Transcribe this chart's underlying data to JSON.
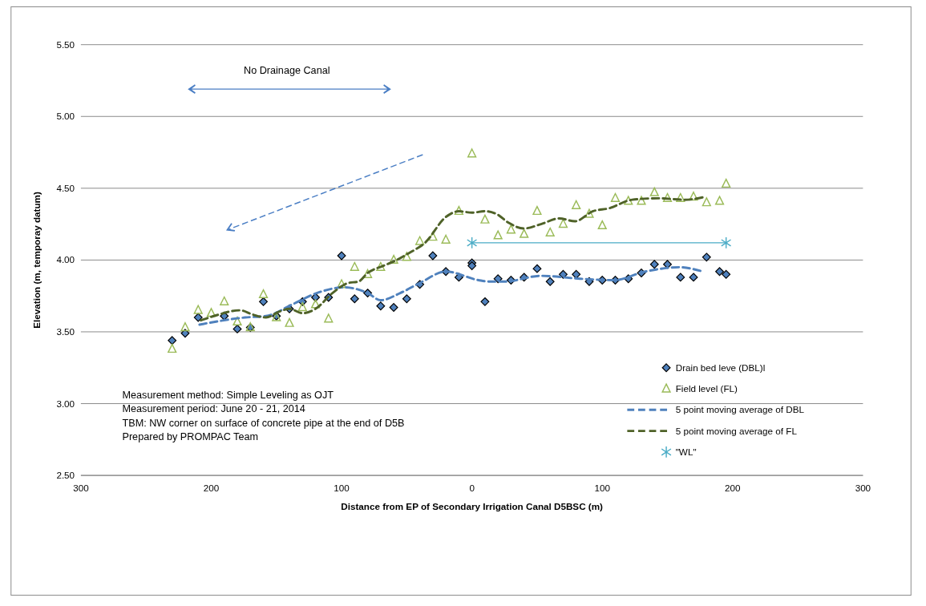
{
  "chart_data": {
    "type": "scatter",
    "xlabel": "Distance from EP of Secondary Irrigation Canal D5BSC (m)",
    "ylabel": "Elevation  (m, temporay datum)",
    "xlim": [
      -300,
      300
    ],
    "xticks": [
      {
        "value": -300,
        "label": "300"
      },
      {
        "value": -200,
        "label": "200"
      },
      {
        "value": -100,
        "label": "100"
      },
      0,
      100,
      200,
      300
    ],
    "ylim": [
      2.5,
      5.5
    ],
    "yticks": [
      {
        "value": 2.5,
        "label": "2.50"
      },
      {
        "value": 3,
        "label": "3.00"
      },
      {
        "value": 3.5,
        "label": "3.50"
      },
      {
        "value": 4,
        "label": "4.00"
      },
      {
        "value": 4.5,
        "label": "4.50"
      },
      {
        "value": 5,
        "label": "5.00"
      },
      {
        "value": 5.5,
        "label": "5.50"
      }
    ],
    "grid": "y",
    "legend": "right",
    "annotations": [
      "No Drainage Canal",
      "Measurement method: Simple Leveling as OJT",
      "Measurement period: June 20 -  21, 2014",
      "TBM: NW corner on surface of concrete pipe at the end of D5B",
      "Prepared by PROMPAC Team"
    ],
    "series": [
      {
        "name": "Drain bed leve (DBL)l",
        "type": "scatter",
        "marker": "diamond",
        "color": "#4f81bd",
        "x": [
          -230,
          -220,
          -210,
          -190,
          -180,
          -170,
          -160,
          -150,
          -140,
          -130,
          -120,
          -110,
          -100,
          -90,
          -80,
          -70,
          -60,
          -50,
          -40,
          -30,
          -20,
          -10,
          0,
          0,
          10,
          20,
          30,
          40,
          50,
          60,
          70,
          80,
          90,
          100,
          110,
          120,
          130,
          140,
          150,
          160,
          170,
          180,
          190,
          195
        ],
        "values": [
          3.44,
          3.49,
          3.6,
          3.61,
          3.52,
          3.53,
          3.71,
          3.61,
          3.66,
          3.71,
          3.74,
          3.74,
          4.03,
          3.73,
          3.77,
          3.68,
          3.67,
          3.73,
          3.83,
          4.03,
          3.92,
          3.88,
          3.98,
          3.96,
          3.71,
          3.87,
          3.86,
          3.88,
          3.94,
          3.85,
          3.9,
          3.9,
          3.85,
          3.86,
          3.86,
          3.87,
          3.91,
          3.97,
          3.97,
          3.88,
          3.88,
          4.02,
          3.92,
          3.9
        ]
      },
      {
        "name": "Field level (FL)",
        "type": "scatter",
        "marker": "triangle",
        "color": "#9bbb59",
        "x": [
          -230,
          -220,
          -210,
          -200,
          -190,
          -180,
          -170,
          -160,
          -150,
          -140,
          -130,
          -120,
          -110,
          -100,
          -90,
          -80,
          -70,
          -60,
          -50,
          -40,
          -30,
          -20,
          -10,
          0,
          10,
          20,
          30,
          40,
          50,
          60,
          70,
          80,
          90,
          100,
          110,
          120,
          130,
          140,
          150,
          160,
          170,
          180,
          190,
          195
        ],
        "values": [
          3.38,
          3.53,
          3.65,
          3.63,
          3.71,
          3.57,
          3.53,
          3.76,
          3.6,
          3.56,
          3.67,
          3.69,
          3.59,
          3.83,
          3.95,
          3.9,
          3.95,
          4.0,
          4.02,
          4.13,
          4.16,
          4.14,
          4.34,
          4.74,
          4.28,
          4.17,
          4.21,
          4.18,
          4.34,
          4.19,
          4.25,
          4.38,
          4.32,
          4.24,
          4.43,
          4.41,
          4.41,
          4.47,
          4.43,
          4.43,
          4.44,
          4.4,
          4.41,
          4.53
        ]
      },
      {
        "name": "5 point moving average of DBL",
        "type": "line",
        "line_style": "dashed",
        "marker": "none",
        "color": "#4f81bd",
        "x": [
          -209,
          -174,
          -158,
          -138,
          -119,
          -98,
          -80,
          -70,
          -55,
          -40,
          -20,
          5,
          13,
          25,
          53,
          83,
          109,
          133,
          159,
          177
        ],
        "values": [
          3.55,
          3.6,
          3.61,
          3.69,
          3.77,
          3.81,
          3.77,
          3.72,
          3.77,
          3.84,
          3.92,
          3.86,
          3.85,
          3.85,
          3.89,
          3.87,
          3.86,
          3.92,
          3.95,
          3.92
        ]
      },
      {
        "name": "5 point moving average of FL",
        "type": "line",
        "line_style": "dashed",
        "marker": "none",
        "color": "#4f6228",
        "x": [
          -208,
          -198,
          -178,
          -168,
          -158,
          -148,
          -140,
          -130,
          -120,
          -107,
          -95,
          -87,
          -80,
          -68,
          -60,
          -48,
          -36,
          -20,
          -10,
          0,
          10,
          19,
          28,
          40,
          53,
          67,
          79,
          93,
          105,
          123,
          143,
          163,
          179
        ],
        "values": [
          3.58,
          3.61,
          3.65,
          3.62,
          3.6,
          3.64,
          3.66,
          3.63,
          3.66,
          3.77,
          3.84,
          3.85,
          3.91,
          3.96,
          3.99,
          4.05,
          4.12,
          4.3,
          4.34,
          4.33,
          4.34,
          4.32,
          4.26,
          4.22,
          4.25,
          4.29,
          4.27,
          4.34,
          4.36,
          4.42,
          4.43,
          4.42,
          4.44
        ]
      },
      {
        "name": "\"WL\"",
        "type": "line",
        "line_style": "solid",
        "marker": "cross",
        "color": "#4bacc6",
        "x": [
          0,
          195
        ],
        "values": [
          4.12,
          4.12
        ]
      }
    ]
  }
}
